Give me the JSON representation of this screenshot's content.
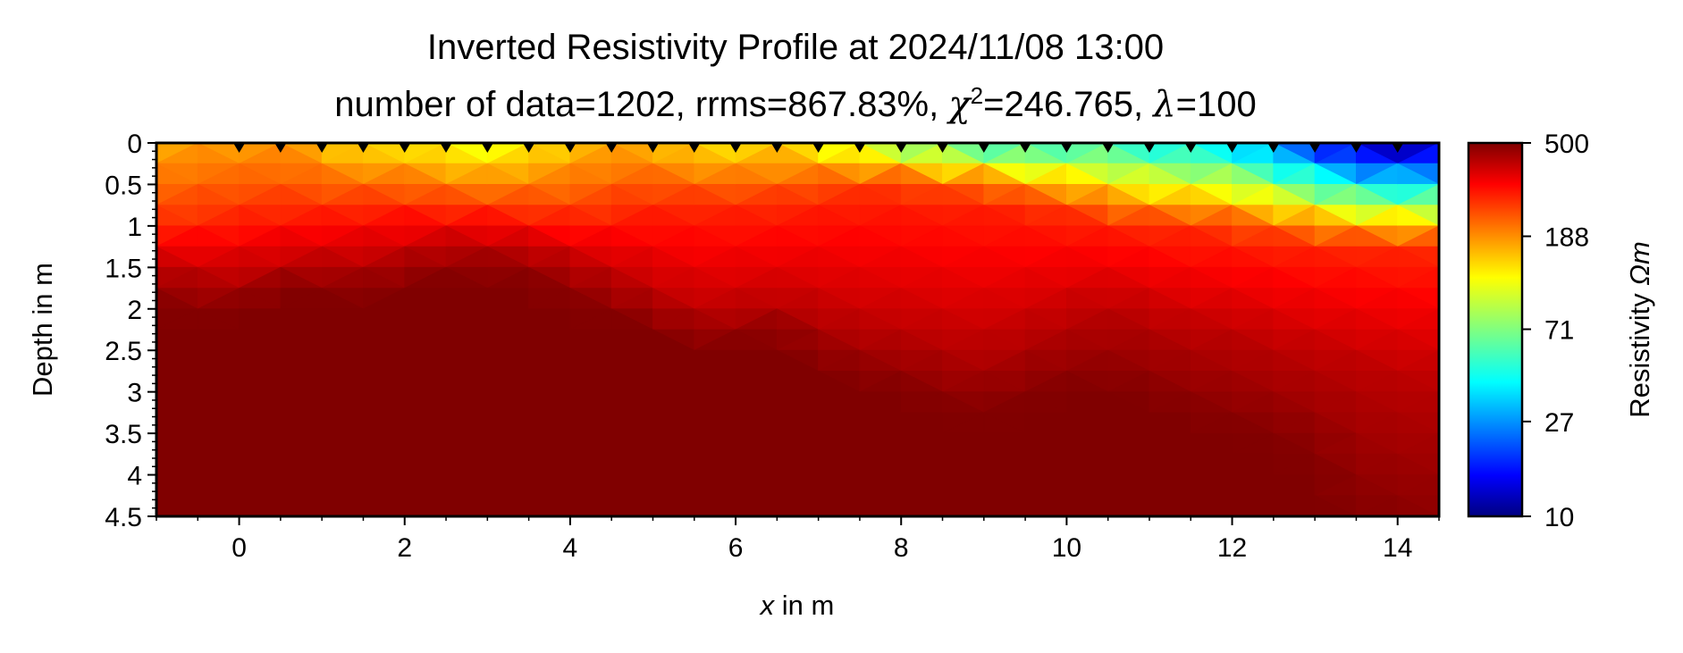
{
  "chart_data": {
    "type": "heatmap",
    "title": "Inverted Resistivity Profile at 2024/11/08 13:00",
    "subtitle_parts": {
      "number_of_data": "number of data=1202",
      "rrms": "rrms=867.83%",
      "chi2": "246.765",
      "lambda": "100"
    },
    "xlabel_var": "x",
    "xlabel_rest": " in m",
    "ylabel": "Depth in m",
    "xlim": [
      -1,
      14.5
    ],
    "ylim": [
      0,
      4.5
    ],
    "x_ticks": [
      0,
      2,
      4,
      6,
      8,
      10,
      12,
      14
    ],
    "y_ticks": [
      0,
      0.5,
      1,
      1.5,
      2,
      2.5,
      3,
      3.5,
      4,
      4.5
    ],
    "colorbar": {
      "label": "Resistivity Ωm",
      "label_main": "Resistivity ",
      "label_unit": "Ωm",
      "scale": "log",
      "range": [
        10,
        500
      ],
      "ticks": [
        500,
        188,
        71,
        27,
        10
      ],
      "colormap": "jet"
    },
    "electrodes_x": [
      0,
      0.5,
      1,
      1.5,
      2,
      2.5,
      3,
      3.5,
      4,
      4.5,
      5,
      5.5,
      6,
      6.5,
      7,
      7.5,
      8,
      8.5,
      9,
      9.5,
      10,
      10.5,
      11,
      11.5,
      12,
      12.5,
      13,
      13.5,
      14
    ],
    "profile_columns_x": [
      -1,
      -0.5,
      0,
      0.5,
      1,
      1.5,
      2,
      2.5,
      3,
      3.5,
      4,
      4.5,
      5,
      5.5,
      6,
      6.5,
      7,
      7.5,
      8,
      8.5,
      9,
      9.5,
      10,
      10.5,
      11,
      11.5,
      12,
      12.5,
      13,
      13.5,
      14,
      14.5
    ],
    "profile_rows_depth": [
      0,
      0.25,
      0.5,
      0.75,
      1.0,
      1.25,
      1.5,
      1.75,
      2.0,
      2.25,
      2.5,
      2.75,
      3.0,
      3.25,
      3.5,
      3.75,
      4.0,
      4.25,
      4.5
    ],
    "interface_depth_moderate": [
      1.0,
      0.95,
      0.85,
      0.8,
      0.8,
      0.75,
      0.75,
      0.8,
      0.8,
      0.85,
      0.9,
      0.85,
      0.7,
      0.75,
      0.7,
      0.75,
      0.6,
      0.55,
      0.5,
      0.6,
      0.55,
      0.7,
      0.8,
      0.9,
      1.0,
      1.0,
      1.05,
      1.1,
      1.15,
      1.2,
      1.2,
      1.25
    ],
    "interface_depth_high": [
      1.5,
      1.6,
      1.65,
      1.5,
      1.45,
      1.45,
      1.35,
      1.25,
      1.25,
      1.3,
      1.45,
      1.6,
      1.85,
      2.05,
      2.05,
      1.95,
      2.1,
      2.25,
      2.3,
      2.4,
      2.5,
      2.3,
      2.15,
      2.0,
      2.1,
      2.3,
      2.3,
      2.5,
      2.6,
      2.7,
      2.85,
      2.9
    ],
    "interface_depth_max": [
      1.9,
      2.1,
      2.0,
      1.75,
      1.8,
      1.9,
      1.7,
      1.6,
      1.65,
      1.6,
      1.9,
      2.1,
      2.2,
      2.5,
      2.4,
      2.3,
      2.7,
      2.9,
      3.0,
      3.2,
      3.3,
      3.1,
      3.0,
      3.0,
      3.1,
      3.3,
      3.5,
      3.6,
      3.9,
      4.6,
      4.8,
      5.0
    ],
    "surface_resistivity": [
      150,
      170,
      160,
      175,
      150,
      120,
      130,
      110,
      100,
      120,
      140,
      160,
      150,
      130,
      120,
      140,
      110,
      90,
      70,
      60,
      50,
      45,
      55,
      50,
      45,
      40,
      38,
      25,
      18,
      12,
      10,
      12
    ],
    "annotation": "electrode positions marked by black triangles along the surface"
  }
}
